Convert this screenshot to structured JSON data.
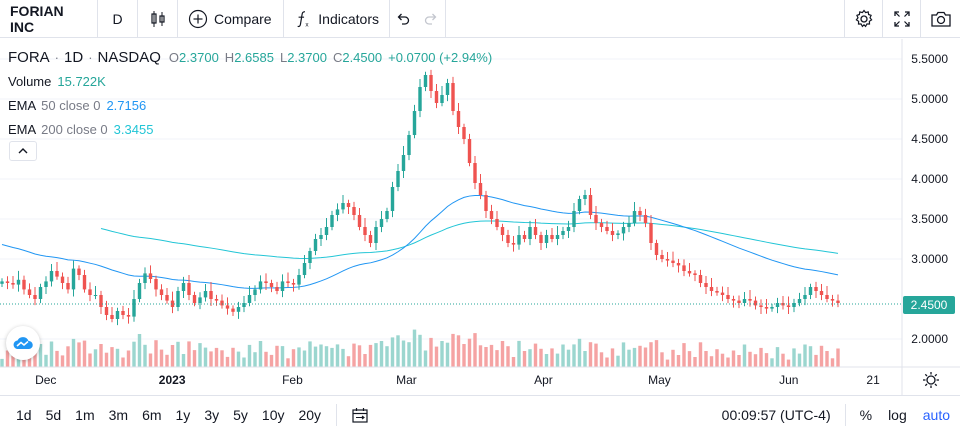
{
  "toolbar": {
    "symbol_name": "FORIAN INC",
    "interval": "D",
    "compare_label": "Compare",
    "indicators_label": "Indicators"
  },
  "legend": {
    "symbol": "FORA",
    "interval": "1D",
    "exchange": "NASDAQ",
    "o_label": "O",
    "o_value": "2.3700",
    "h_label": "H",
    "h_value": "2.6585",
    "l_label": "L",
    "l_value": "2.3700",
    "c_label": "C",
    "c_value": "2.4500",
    "change": "+0.0700 (+2.94%)",
    "volume_label": "Volume",
    "volume_value": "15.722K",
    "ema50_label": "EMA",
    "ema50_params": "50 close 0",
    "ema50_value": "2.7156",
    "ema200_label": "EMA",
    "ema200_params": "200 close 0",
    "ema200_value": "3.3455"
  },
  "colors": {
    "up": "#26a69a",
    "down": "#ef5350",
    "ema50": "#2196f3",
    "ema200": "#22c5d6",
    "vol_up": "#9bd6cf",
    "vol_down": "#f5a3a3"
  },
  "bottom": {
    "ranges": [
      "1d",
      "5d",
      "1m",
      "3m",
      "6m",
      "1y",
      "3y",
      "5y",
      "10y",
      "20y"
    ],
    "time": "00:09:57 (UTC-4)",
    "percent": "%",
    "log": "log",
    "auto": "auto"
  },
  "chart_data": {
    "type": "candlestick",
    "x_ticks": [
      "Dec",
      "2023",
      "Feb",
      "Mar",
      "Apr",
      "May",
      "Jun",
      "21"
    ],
    "y_ticks": [
      "5.5000",
      "5.0000",
      "4.5000",
      "4.0000",
      "3.5000",
      "3.0000",
      "2.0000"
    ],
    "ylim": [
      1.65,
      5.75
    ],
    "last_price": "2.4500",
    "close": [
      2.72,
      2.7,
      2.68,
      2.74,
      2.62,
      2.55,
      2.5,
      2.65,
      2.72,
      2.85,
      2.78,
      2.7,
      2.62,
      2.88,
      2.8,
      2.62,
      2.55,
      2.55,
      2.4,
      2.3,
      2.25,
      2.35,
      2.3,
      2.28,
      2.5,
      2.7,
      2.82,
      2.75,
      2.62,
      2.55,
      2.48,
      2.4,
      2.6,
      2.7,
      2.55,
      2.45,
      2.52,
      2.6,
      2.5,
      2.48,
      2.42,
      2.38,
      2.34,
      2.4,
      2.45,
      2.55,
      2.62,
      2.72,
      2.7,
      2.65,
      2.6,
      2.72,
      2.7,
      2.68,
      2.8,
      2.95,
      3.1,
      3.25,
      3.3,
      3.4,
      3.55,
      3.62,
      3.7,
      3.65,
      3.55,
      3.4,
      3.3,
      3.2,
      3.4,
      3.5,
      3.6,
      3.9,
      4.1,
      4.3,
      4.55,
      4.85,
      5.15,
      5.3,
      5.1,
      4.95,
      5.05,
      5.2,
      4.85,
      4.65,
      4.5,
      4.2,
      3.95,
      3.8,
      3.6,
      3.5,
      3.4,
      3.3,
      3.2,
      3.18,
      3.3,
      3.25,
      3.4,
      3.3,
      3.2,
      3.3,
      3.25,
      3.3,
      3.35,
      3.4,
      3.6,
      3.75,
      3.8,
      3.55,
      3.45,
      3.4,
      3.35,
      3.3,
      3.32,
      3.4,
      3.45,
      3.6,
      3.55,
      3.45,
      3.2,
      3.05,
      3.0,
      2.98,
      2.95,
      2.92,
      2.85,
      2.82,
      2.8,
      2.7,
      2.65,
      2.6,
      2.58,
      2.55,
      2.5,
      2.48,
      2.45,
      2.5,
      2.48,
      2.42,
      2.4,
      2.38,
      2.4,
      2.45,
      2.42,
      2.4,
      2.45,
      2.5,
      2.55,
      2.65,
      2.6,
      2.55,
      2.5,
      2.48,
      2.45
    ]
  }
}
